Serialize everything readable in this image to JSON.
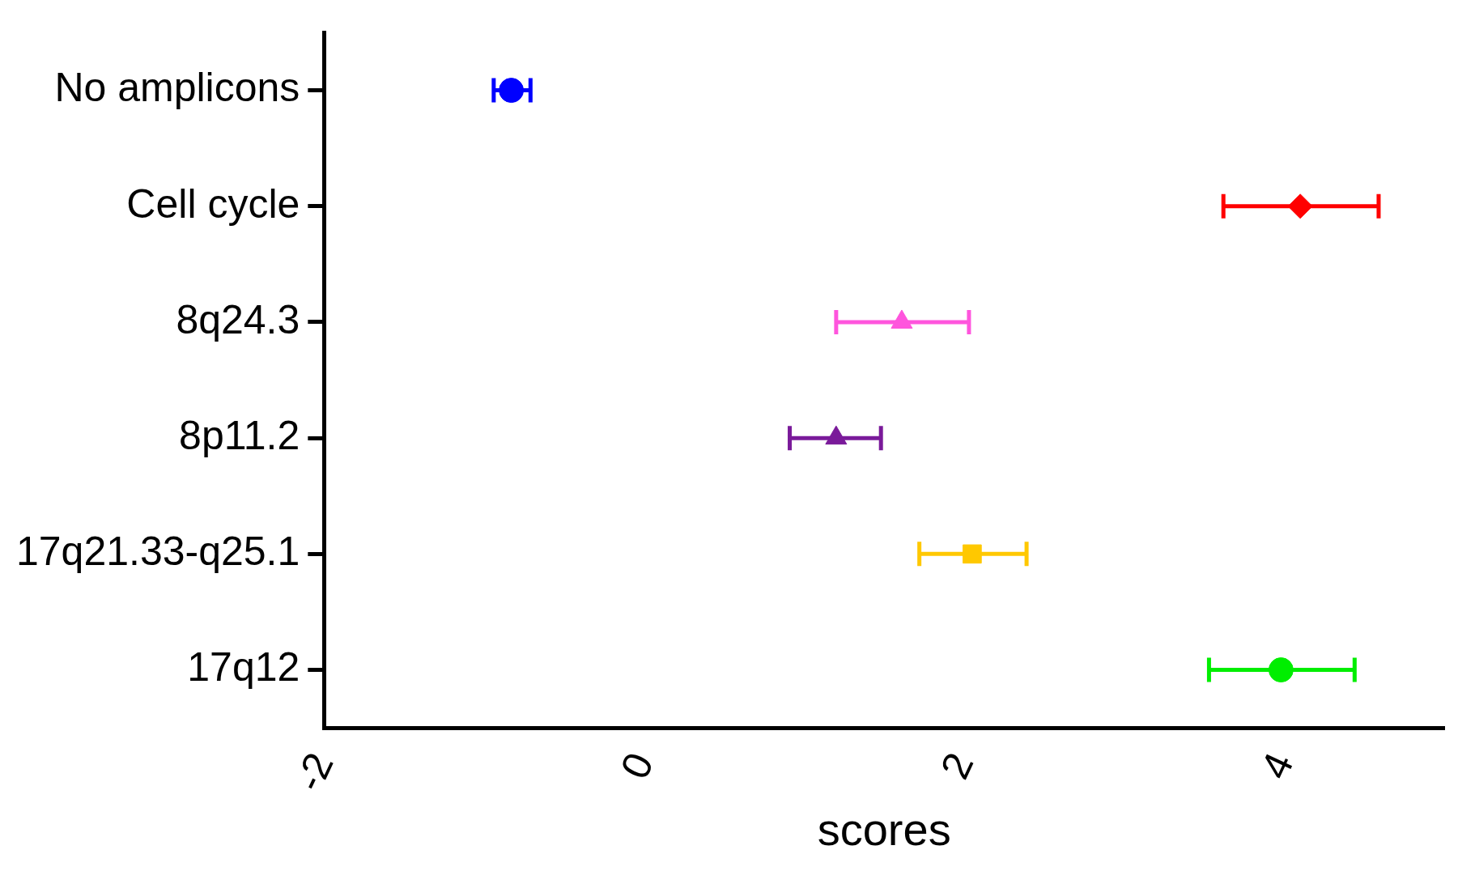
{
  "chart_data": {
    "type": "scatter",
    "orientation": "horizontal",
    "xlabel": "scores",
    "categories": [
      "No amplicons",
      "Cell cycle",
      "8q24.3",
      "8p11.2",
      "17q21.33-q25.1",
      "17q12"
    ],
    "series": [
      {
        "color": "#0000ff",
        "marker": "circle",
        "values": [
          -0.83,
          null,
          null,
          null,
          null,
          null
        ],
        "errors": [
          [
            -0.94,
            -0.71
          ],
          null,
          null,
          null,
          null,
          null
        ]
      },
      {
        "color": "#ff0000",
        "marker": "diamond",
        "values": [
          null,
          4.1,
          null,
          null,
          null,
          null
        ],
        "errors": [
          null,
          [
            3.62,
            4.59
          ],
          null,
          null,
          null,
          null
        ]
      },
      {
        "color": "#ff55dd",
        "marker": "triangle",
        "values": [
          null,
          null,
          1.61,
          null,
          null,
          null
        ],
        "errors": [
          null,
          null,
          [
            1.2,
            2.03
          ],
          null,
          null,
          null
        ]
      },
      {
        "color": "#7a1a9a",
        "marker": "triangle",
        "values": [
          null,
          null,
          null,
          1.2,
          null,
          null
        ],
        "errors": [
          null,
          null,
          null,
          [
            0.91,
            1.48
          ],
          null,
          null
        ]
      },
      {
        "color": "#ffc800",
        "marker": "square",
        "values": [
          null,
          null,
          null,
          null,
          2.05,
          null
        ],
        "errors": [
          null,
          null,
          null,
          null,
          [
            1.72,
            2.39
          ],
          null
        ]
      },
      {
        "color": "#00ee00",
        "marker": "circle",
        "values": [
          null,
          null,
          null,
          null,
          null,
          3.98
        ],
        "errors": [
          null,
          null,
          null,
          null,
          null,
          [
            3.53,
            4.44
          ]
        ]
      }
    ],
    "xlim": [
      -2,
      5
    ],
    "xticks": [
      -2,
      0,
      2,
      4
    ],
    "grid": false,
    "legend": false
  }
}
